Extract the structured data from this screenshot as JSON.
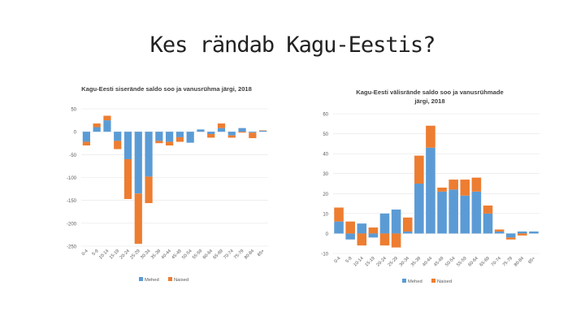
{
  "slide": {
    "title": "Kes rändab Kagu-Eestis?"
  },
  "colors": {
    "mehed": "#5b9bd5",
    "naised": "#ed7d31",
    "grid": "#e4e4e4",
    "axis_text": "#595959"
  },
  "chart_data": [
    {
      "type": "bar",
      "stacked": true,
      "title": "Kagu-Eesti siserände saldo soo ja vanusrühma järgi, 2018",
      "categories": [
        "0-4",
        "5-9",
        "10-14",
        "15-19",
        "20-24",
        "25-29",
        "30-34",
        "35-39",
        "40-44",
        "45-49",
        "50-54",
        "55-59",
        "60-64",
        "65-69",
        "70-74",
        "75-79",
        "80-84",
        "85+"
      ],
      "series": [
        {
          "name": "Mehed",
          "values": [
            -22,
            10,
            25,
            -20,
            -60,
            -135,
            -98,
            -20,
            -22,
            -12,
            -24,
            5,
            -5,
            8,
            -8,
            8,
            -2,
            2
          ]
        },
        {
          "name": "Naised",
          "values": [
            -8,
            8,
            10,
            -18,
            -87,
            -110,
            -58,
            -5,
            -8,
            -10,
            0,
            0,
            -8,
            10,
            -5,
            -2,
            -12,
            1
          ]
        }
      ],
      "ylim": [
        -250,
        50
      ],
      "yticks": [
        50,
        0,
        -50,
        -100,
        -150,
        -200,
        -250
      ],
      "legend": "bottom"
    },
    {
      "type": "bar",
      "stacked": true,
      "title": "Kagu-Eesti välisrände saldo soo ja vanusrühmade järgi, 2018",
      "categories": [
        "0-4",
        "5-9",
        "10-14",
        "15-19",
        "20-24",
        "25-29",
        "30-34",
        "35-39",
        "40-44",
        "45-49",
        "50-54",
        "55-59",
        "60-64",
        "65-69",
        "70-74",
        "75-79",
        "80-84",
        "85+"
      ],
      "series": [
        {
          "name": "Mehed",
          "values": [
            6,
            -3,
            5,
            -2,
            10,
            12,
            1,
            25,
            43,
            21,
            22,
            19,
            21,
            10,
            1,
            -2,
            1,
            1
          ]
        },
        {
          "name": "Naised",
          "values": [
            7,
            6,
            -6,
            3,
            -6,
            -7,
            7,
            14,
            11,
            2,
            5,
            8,
            7,
            4,
            1,
            -1,
            -1,
            0
          ]
        }
      ],
      "ylim": [
        -10,
        60
      ],
      "yticks": [
        60,
        50,
        40,
        30,
        20,
        10,
        0,
        -10
      ],
      "legend": "bottom"
    }
  ]
}
